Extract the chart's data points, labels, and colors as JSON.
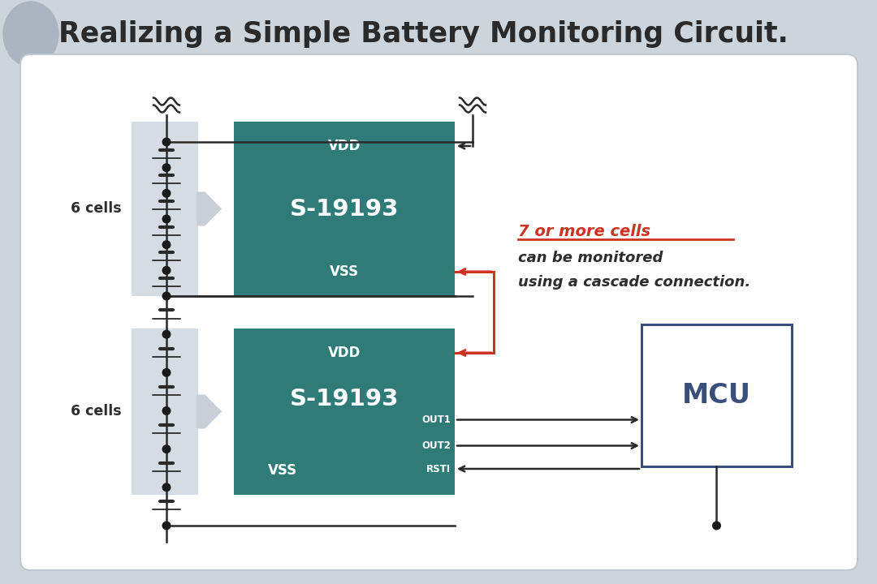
{
  "title": "Realizing a Simple Battery Monitoring Circuit.",
  "bg_color": "#cdd5dc",
  "teal_color": "#2e7b78",
  "dark_text": "#2d2d2d",
  "red_color": "#cc3322",
  "mcu_border": "#3a4f7a",
  "label_6cells": "6 cells",
  "ic_name": "S-19193",
  "vdd": "VDD",
  "vss": "VSS",
  "out1": "OUT1",
  "out2": "OUT2",
  "rsti": "RSTI",
  "mcu": "MCU",
  "cascade_line1": "7 or more cells",
  "cascade_line2": "can be monitored",
  "cascade_line3": "using a cascade connection."
}
